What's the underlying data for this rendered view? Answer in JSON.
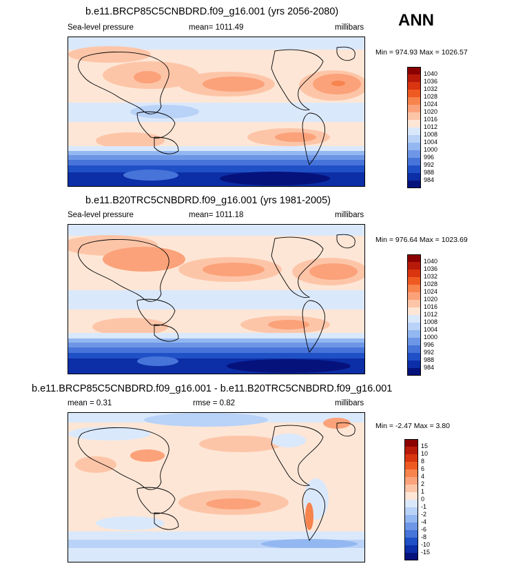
{
  "header": {
    "season": "ANN"
  },
  "panels": [
    {
      "title": "b.e11.BRCP85C5CNBDRD.f09_g16.001 (yrs 2056-2080)",
      "left": "Sea-level pressure",
      "center": "mean= 1011.49",
      "right": "millibars",
      "minmax": "Min = 974.93 Max = 1026.57",
      "colorbar": [
        "1040",
        "1036",
        "1032",
        "1028",
        "1024",
        "1020",
        "1016",
        "1012",
        "1008",
        "1004",
        "1000",
        "996",
        "992",
        "988",
        "984"
      ],
      "colors": [
        "#8b0000",
        "#b81a0a",
        "#d83510",
        "#ef5a22",
        "#f7834d",
        "#fba27a",
        "#fdc5a8",
        "#fde6d6",
        "#dae8fb",
        "#b9d2f7",
        "#93b7f0",
        "#6d96e6",
        "#4774d9",
        "#2050c6",
        "#0c2ea6",
        "#06127c"
      ]
    },
    {
      "title": "b.e11.B20TRC5CNBDRD.f09_g16.001 (yrs 1981-2005)",
      "left": "Sea-level pressure",
      "center": "mean= 1011.18",
      "right": "millibars",
      "minmax": "Min = 976.64 Max = 1023.69",
      "colorbar": [
        "1040",
        "1036",
        "1032",
        "1028",
        "1024",
        "1020",
        "1016",
        "1012",
        "1008",
        "1004",
        "1000",
        "996",
        "992",
        "988",
        "984"
      ],
      "colors": [
        "#8b0000",
        "#b81a0a",
        "#d83510",
        "#ef5a22",
        "#f7834d",
        "#fba27a",
        "#fdc5a8",
        "#fde6d6",
        "#dae8fb",
        "#b9d2f7",
        "#93b7f0",
        "#6d96e6",
        "#4774d9",
        "#2050c6",
        "#0c2ea6",
        "#06127c"
      ]
    },
    {
      "title": "b.e11.BRCP85C5CNBDRD.f09_g16.001 - b.e11.B20TRC5CNBDRD.f09_g16.001",
      "left": "mean =   0.31",
      "center": "rmse =   0.82",
      "right": "millibars",
      "minmax": "Min =  -2.47 Max =   3.80",
      "colorbar": [
        "15",
        "10",
        "8",
        "6",
        "4",
        "2",
        "1",
        "0",
        "-1",
        "-2",
        "-4",
        "-6",
        "-8",
        "-10",
        "-15"
      ],
      "colors": [
        "#8b0000",
        "#b81a0a",
        "#d83510",
        "#ef5a22",
        "#f7834d",
        "#fba27a",
        "#fdc5a8",
        "#fde6d6",
        "#dae8fb",
        "#b9d2f7",
        "#93b7f0",
        "#6d96e6",
        "#4774d9",
        "#2050c6",
        "#0c2ea6",
        "#06127c"
      ]
    }
  ]
}
